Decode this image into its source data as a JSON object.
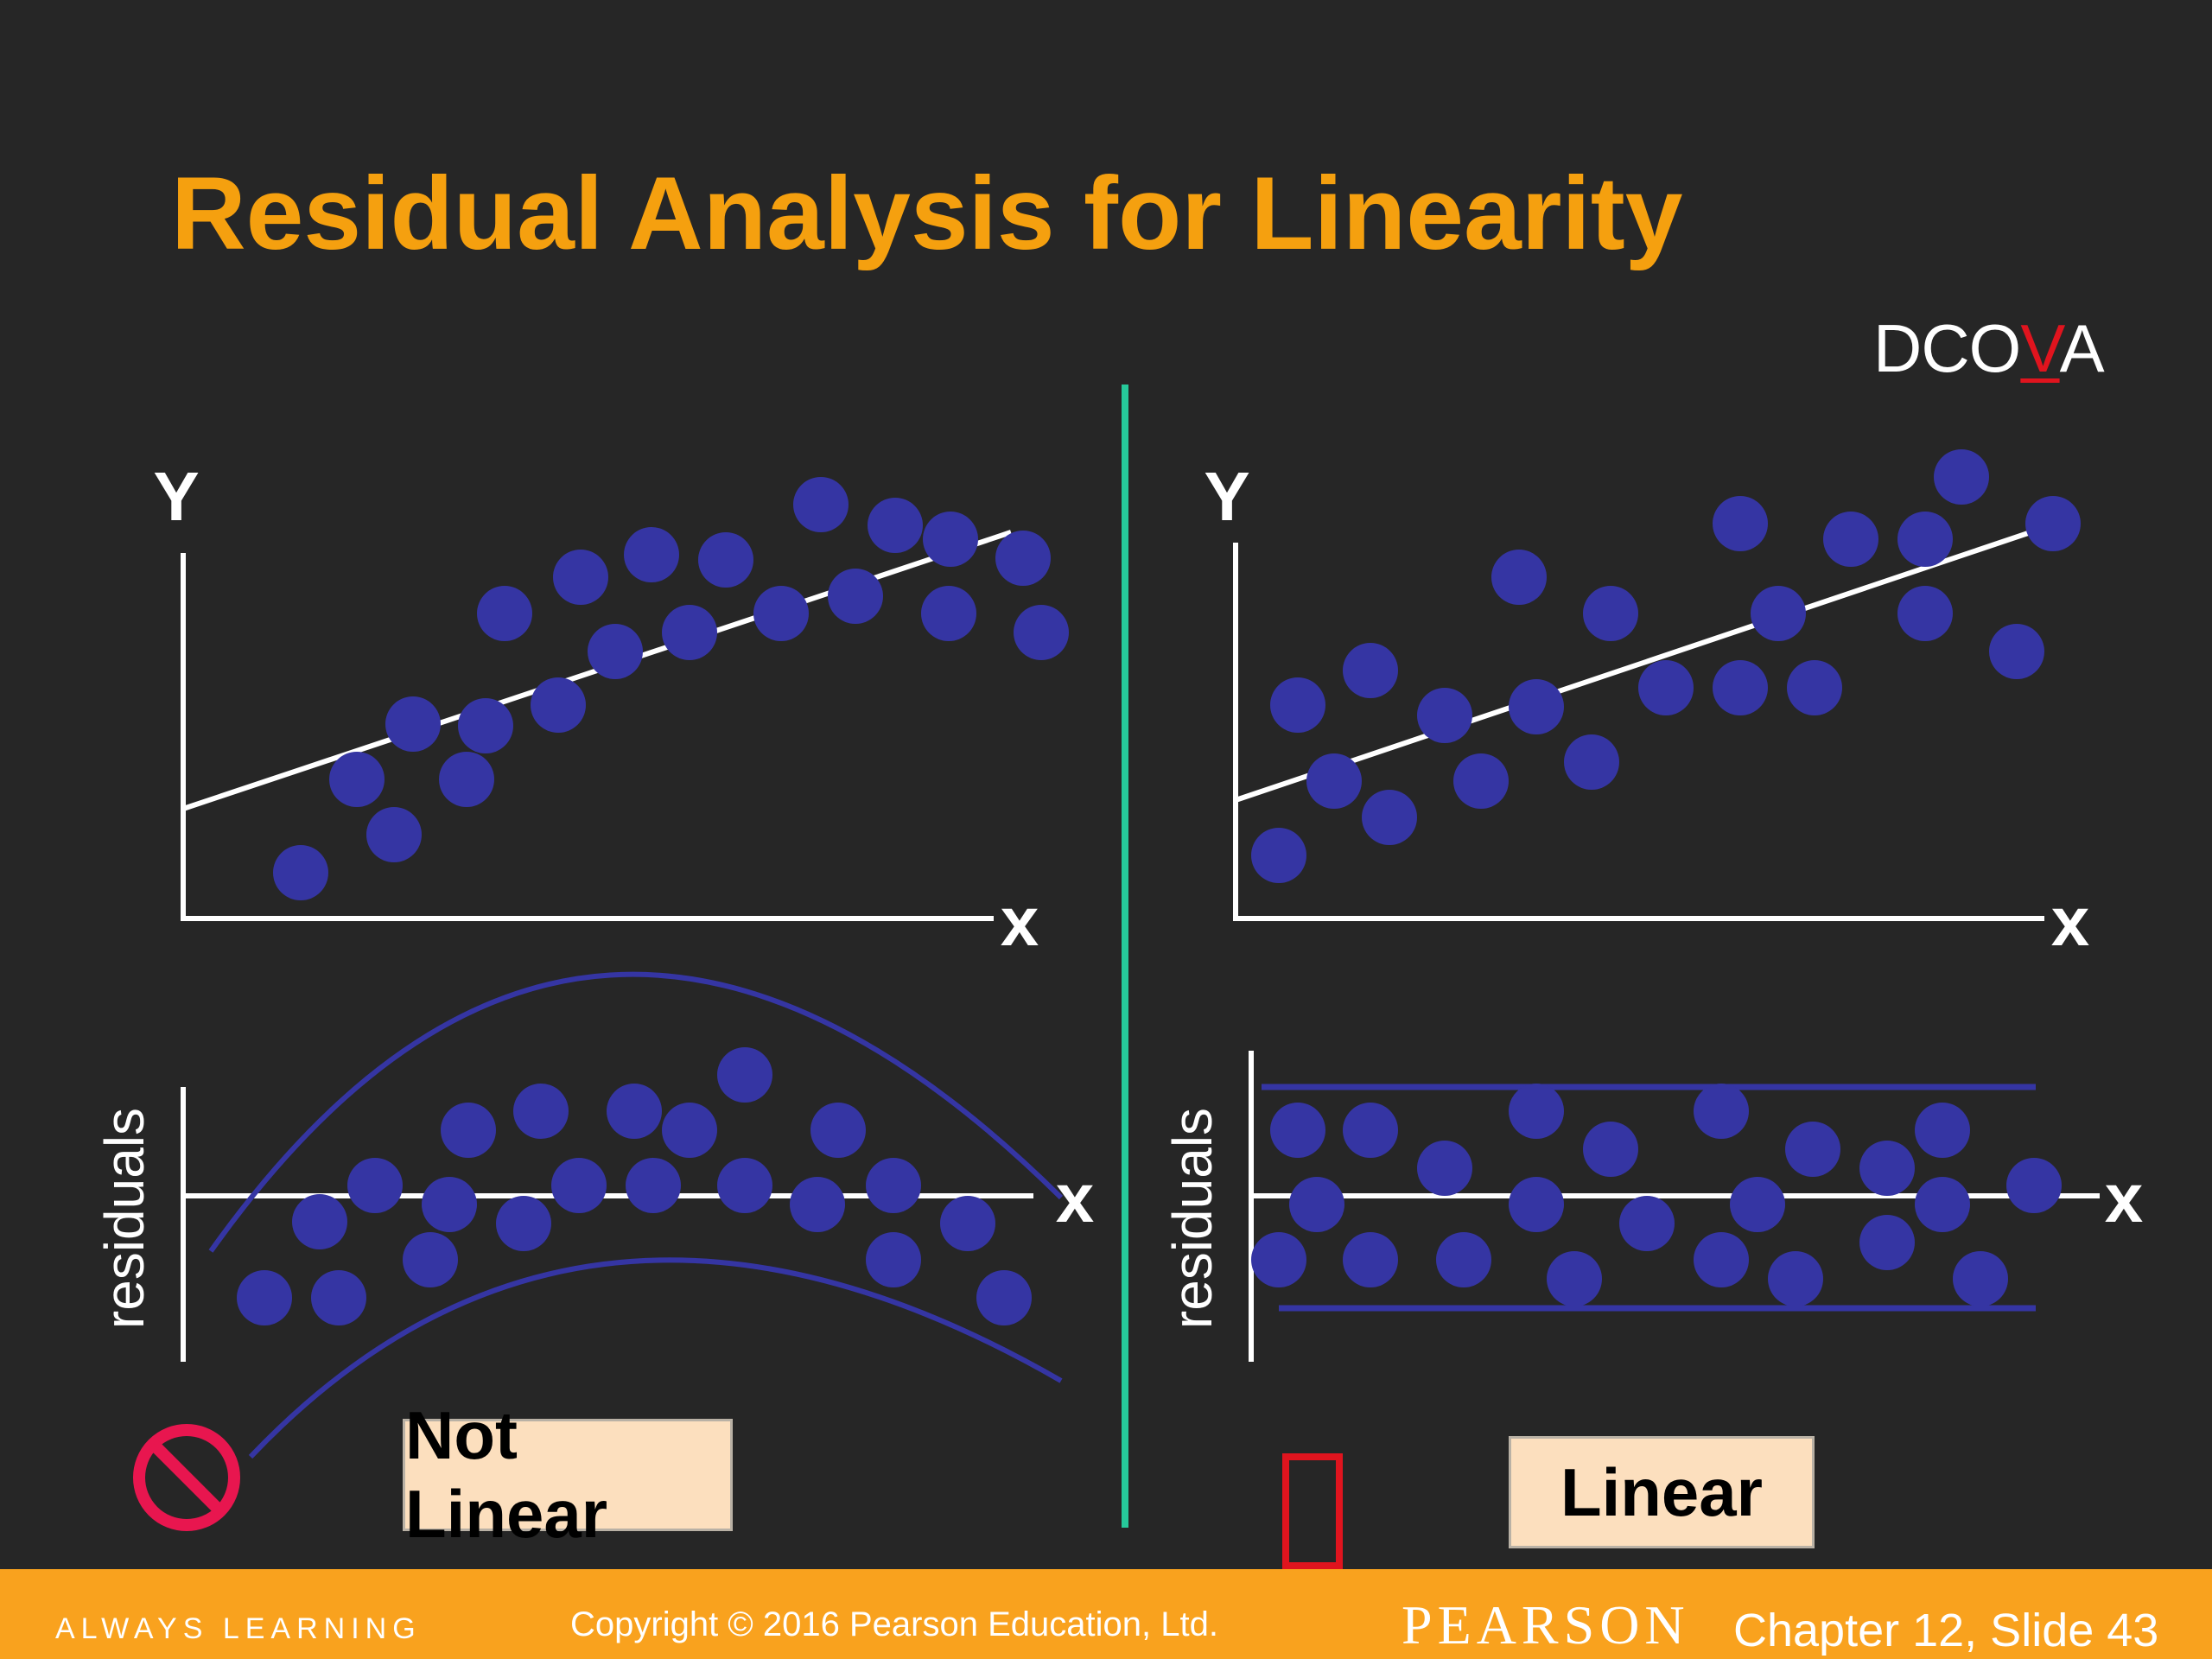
{
  "slide": {
    "title": "Residual Analysis for Linearity",
    "dcova": {
      "before": "DCO",
      "highlight": "V",
      "after": "A"
    }
  },
  "left_panel": {
    "scatter": {
      "y_axis_label": "Y",
      "x_axis_label": "x"
    },
    "residual_plot": {
      "y_axis_label": "residuals",
      "x_axis_label": "x"
    },
    "verdict": "Not Linear",
    "verdict_icon": "prohibited-icon"
  },
  "right_panel": {
    "scatter": {
      "y_axis_label": "Y",
      "x_axis_label": "x"
    },
    "residual_plot": {
      "y_axis_label": "residuals",
      "x_axis_label": "x"
    },
    "verdict": "Linear",
    "verdict_icon": "empty-checkbox-icon"
  },
  "footer": {
    "tagline": "ALWAYS LEARNING",
    "copyright": "Copyright © 2016 Pearson Education, Ltd.",
    "brand": "PEARSON",
    "slide_ref": "Chapter 12, Slide 43"
  },
  "colors": {
    "background": "#262626",
    "title": "#F5A00F",
    "point": "#3535A3",
    "divider": "#26C99A",
    "label_box": "#FCDFBE",
    "footer": "#F9A21E",
    "prohibited": "#E8164F",
    "checkbox": "#E0141E"
  }
}
